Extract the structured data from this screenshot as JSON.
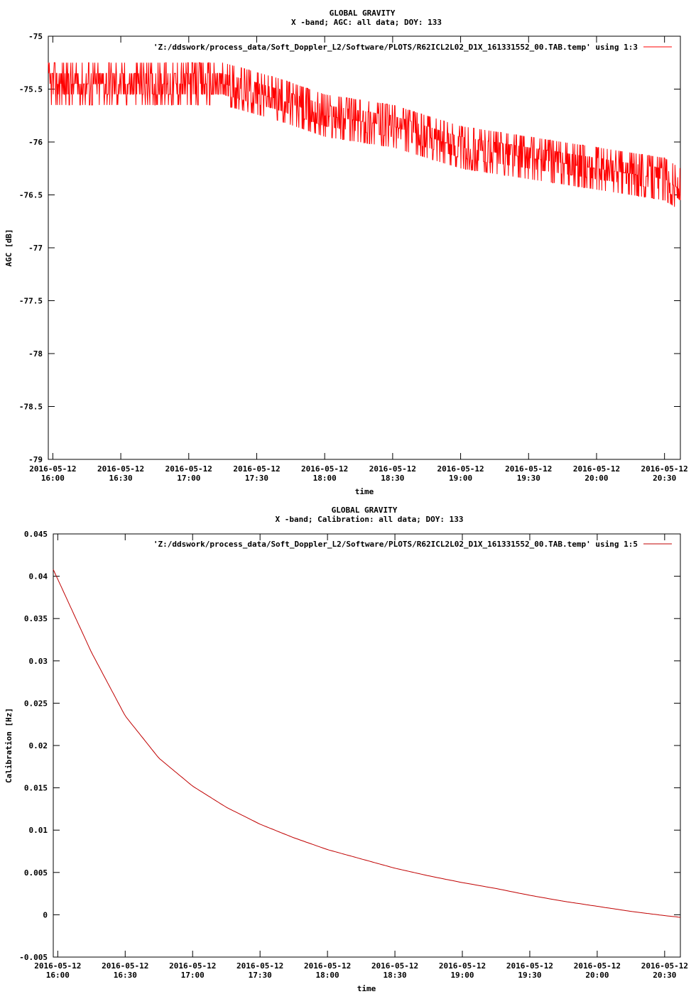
{
  "chart_data": [
    {
      "type": "line",
      "title": "GLOBAL GRAVITY",
      "subtitle": "X -band; AGC: all data; DOY: 133",
      "xlabel": "time",
      "ylabel": "AGC [dB]",
      "ylim": [
        -79,
        -75
      ],
      "yticks": [
        "-75",
        "-75.5",
        "-76",
        "-76.5",
        "-77",
        "-77.5",
        "-78",
        "-78.5",
        "-79"
      ],
      "ytick_values": [
        -75,
        -75.5,
        -76,
        -76.5,
        -77,
        -77.5,
        -78,
        -78.5,
        -79
      ],
      "xlim": [
        "2016-05-12 15:58",
        "2016-05-12 20:37"
      ],
      "xticks_date": [
        "2016-05-12",
        "2016-05-12",
        "2016-05-12",
        "2016-05-12",
        "2016-05-12",
        "2016-05-12",
        "2016-05-12",
        "2016-05-12",
        "2016-05-12",
        "2016-05-12"
      ],
      "xticks_time": [
        "16:00",
        "16:30",
        "17:00",
        "17:30",
        "18:00",
        "18:30",
        "19:00",
        "19:30",
        "20:00",
        "20:30"
      ],
      "grid": false,
      "legend_position": "top-right",
      "series": [
        {
          "name": "'Z:/ddswork/process_data/Soft_Doppler_L2/Software/PLOTS/R62ICL2L02_D1X_161331552_00.TAB.temp' using 1:3",
          "color": "#ff0000",
          "style": "noisy",
          "x": [
            "2016-05-12 15:58",
            "2016-05-12 16:30",
            "2016-05-12 17:00",
            "2016-05-12 17:15",
            "2016-05-12 17:40",
            "2016-05-12 18:00",
            "2016-05-12 18:30",
            "2016-05-12 18:45",
            "2016-05-12 19:00",
            "2016-05-12 19:30",
            "2016-05-12 20:00",
            "2016-05-12 20:30",
            "2016-05-12 20:37"
          ],
          "values": [
            -75.45,
            -75.45,
            -75.45,
            -75.45,
            -75.6,
            -75.75,
            -75.85,
            -75.95,
            -76.05,
            -76.15,
            -76.25,
            -76.35,
            -76.45
          ],
          "noise_range": 0.25
        }
      ]
    },
    {
      "type": "line",
      "title": "GLOBAL GRAVITY",
      "subtitle": "X -band; Calibration: all data; DOY: 133",
      "xlabel": "time",
      "ylabel": "Calibration [Hz]",
      "ylim": [
        -0.005,
        0.045
      ],
      "yticks": [
        "0.045",
        "0.04",
        "0.035",
        "0.03",
        "0.025",
        "0.02",
        "0.015",
        "0.01",
        "0.005",
        "0",
        "-0.005"
      ],
      "ytick_values": [
        0.045,
        0.04,
        0.035,
        0.03,
        0.025,
        0.02,
        0.015,
        0.01,
        0.005,
        0,
        -0.005
      ],
      "xlim": [
        "2016-05-12 15:58",
        "2016-05-12 20:37"
      ],
      "xticks_date": [
        "2016-05-12",
        "2016-05-12",
        "2016-05-12",
        "2016-05-12",
        "2016-05-12",
        "2016-05-12",
        "2016-05-12",
        "2016-05-12",
        "2016-05-12",
        "2016-05-12"
      ],
      "xticks_time": [
        "16:00",
        "16:30",
        "17:00",
        "17:30",
        "18:00",
        "18:30",
        "19:00",
        "19:30",
        "20:00",
        "20:30"
      ],
      "grid": false,
      "legend_position": "top-right",
      "series": [
        {
          "name": "'Z:/ddswork/process_data/Soft_Doppler_L2/Software/PLOTS/R62ICL2L02_D1X_161331552_00.TAB.temp' using 1:5",
          "color": "#c00000",
          "style": "smooth",
          "x": [
            "2016-05-12 15:58",
            "2016-05-12 16:15",
            "2016-05-12 16:30",
            "2016-05-12 16:45",
            "2016-05-12 17:00",
            "2016-05-12 17:15",
            "2016-05-12 17:30",
            "2016-05-12 17:45",
            "2016-05-12 18:00",
            "2016-05-12 18:15",
            "2016-05-12 18:30",
            "2016-05-12 18:45",
            "2016-05-12 19:00",
            "2016-05-12 19:15",
            "2016-05-12 19:30",
            "2016-05-12 19:45",
            "2016-05-12 20:00",
            "2016-05-12 20:15",
            "2016-05-12 20:30",
            "2016-05-12 20:37"
          ],
          "values": [
            0.0408,
            0.031,
            0.0235,
            0.0185,
            0.0152,
            0.0127,
            0.0107,
            0.0091,
            0.0077,
            0.0066,
            0.0055,
            0.0046,
            0.0038,
            0.0031,
            0.0023,
            0.0016,
            0.001,
            0.0004,
            -0.0001,
            -0.0003
          ]
        }
      ]
    }
  ]
}
